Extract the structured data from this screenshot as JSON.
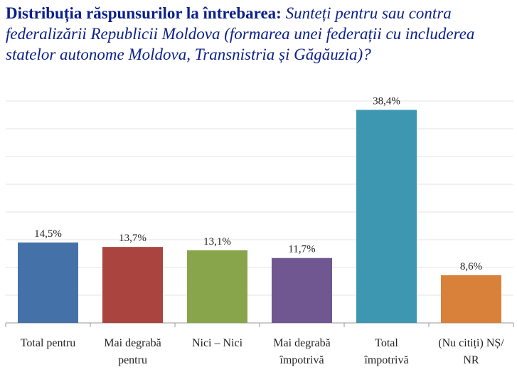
{
  "title": {
    "lead": "Distribuția răspunsurilor la întrebarea:",
    "question": "Sunteți pentru sau contra federalizării Republicii Moldova (formarea unei federații cu includerea statelor autonome Moldova, Transnistria și Găgăuzia)?"
  },
  "chart_data": {
    "type": "bar",
    "categories": [
      [
        "Total pentru"
      ],
      [
        "Mai degrabă",
        "pentru"
      ],
      [
        "Nici – Nici"
      ],
      [
        "Mai degrabă",
        "împotrivă"
      ],
      [
        "Total",
        "împotrivă"
      ],
      [
        "(Nu citiți) NȘ/",
        "NR"
      ]
    ],
    "values": [
      14.5,
      13.7,
      13.1,
      11.7,
      38.4,
      8.6
    ],
    "value_labels": [
      "14,5%",
      "13,7%",
      "13,1%",
      "11,7%",
      "38,4%",
      "8,6%"
    ],
    "colors": [
      "#4472a8",
      "#a9443f",
      "#88a54c",
      "#705791",
      "#3e97b0",
      "#d9813b"
    ],
    "ylim": [
      0,
      40
    ],
    "grid": true,
    "legend": "none"
  }
}
